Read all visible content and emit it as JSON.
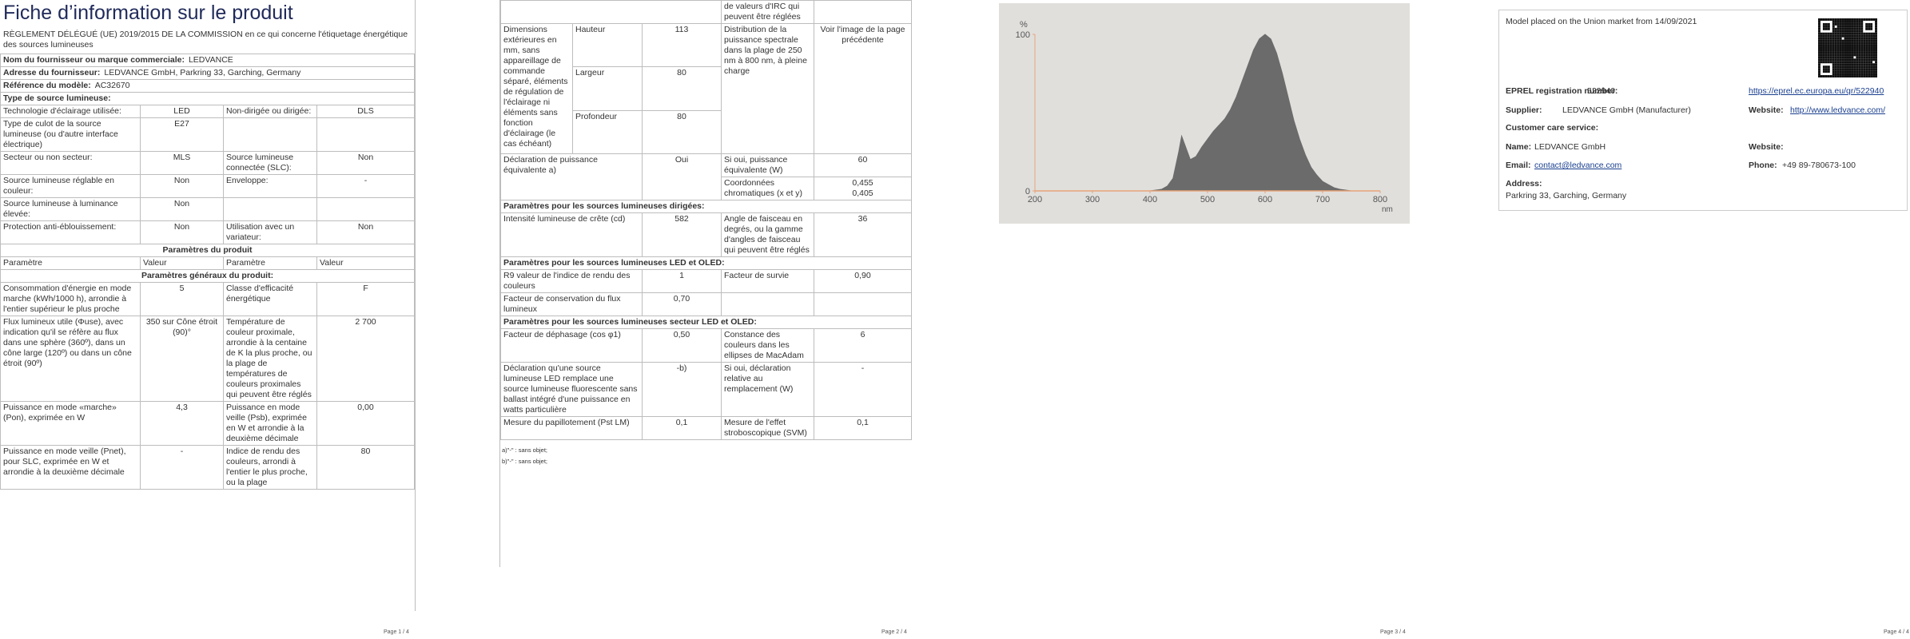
{
  "page1": {
    "title": "Fiche d’information sur le produit",
    "regulation": "RÈGLEMENT DÉLÉGUÉ (UE) 2019/2015 DE LA COMMISSION en ce qui concerne l'étiquetage énergétique des sources lumineuses",
    "supplier_info": [
      [
        "Nom du fournisseur ou marque commerciale:",
        "LEDVANCE"
      ],
      [
        "Adresse du fournisseur:",
        "LEDVANCE GmbH, Parkring 33, Garching, Germany"
      ],
      [
        "Référence du modèle:",
        "AC32670"
      ]
    ],
    "source_heading": "Type de source lumineuse:",
    "source_rows": [
      [
        "Technologie d'éclairage utilisée:",
        "LED",
        "Non-dirigée ou dirigée:",
        "DLS"
      ],
      [
        "Type de culot de la source lumineuse (ou d'autre interface électrique)",
        "E27",
        null,
        null
      ],
      [
        "Secteur ou non secteur:",
        "MLS",
        "Source lumineuse connectée (SLC):",
        "Non"
      ],
      [
        "Source lumineuse réglable en couleur:",
        "Non",
        "Enveloppe:",
        "-"
      ],
      [
        "Source lumineuse à luminance élevée:",
        "Non",
        null,
        null
      ],
      [
        "Protection anti-éblouissement:",
        "Non",
        "Utilisation avec un variateur:",
        "Non"
      ]
    ],
    "params_heading": "Paramètres du produit",
    "header_row": [
      "Paramètre",
      "Valeur",
      "Paramètre",
      "Valeur"
    ],
    "general_heading": "Paramètres généraux du produit:",
    "general_rows": [
      [
        "Consommation d'énergie en mode marche (kWh/1000 h), arrondie à l'entier supérieur le plus proche",
        "5",
        "Classe d'efficacité énergétique",
        "F"
      ],
      [
        "Flux lumineux utile (Φuse), avec indication qu'il se réfère au flux dans une sphère (360º), dans un cône large (120º) ou dans un cône étroit (90º)",
        "350 sur Cône étroit (90)°",
        "Température de couleur proximale, arrondie à la centaine de K la plus proche, ou la plage de températures de couleurs proximales qui peuvent être réglés",
        "2 700"
      ],
      [
        "Puissance en mode «marche» (Pon), exprimée en W",
        "4,3",
        "Puissance en mode veille (Psb), exprimée en W et arrondie à la deuxième décimale",
        "0,00"
      ],
      [
        "Puissance en mode veille (Pnet), pour SLC, exprimée en W et arrondie à la deuxième décimale",
        "-",
        "Indice de rendu des couleurs, arrondi à l'entier le plus proche, ou la plage",
        "80"
      ]
    ],
    "footer": "Page 1 / 4"
  },
  "page2": {
    "continued": "de valeurs d'IRC qui peuvent être réglées",
    "dimensions": {
      "label": "Dimensions extérieures en mm, sans appareillage de commande séparé, éléments de régulation de l'éclairage ni éléments sans fonction d'éclairage (le cas échéant)",
      "rows": [
        [
          "Hauteur",
          "113"
        ],
        [
          "Largeur",
          "80"
        ],
        [
          "Profondeur",
          "80"
        ]
      ],
      "param": "Distribution de la puissance spectrale dans la plage de 250 nm à 800 nm, à pleine charge",
      "value": "Voir l'image de la page précédente"
    },
    "equivalent": {
      "label": "Déclaration de puissance équivalente a)",
      "value": "Oui",
      "param": "Si oui, puissance équivalente (W)",
      "param_value": "60",
      "chroma_label": "Coordonnées chromatiques (x et y)",
      "chroma_values": [
        "0,455",
        "0,405"
      ]
    },
    "sections": [
      {
        "heading": "Paramètres pour les sources lumineuses dirigées:",
        "rows": [
          [
            "Intensité lumineuse de crête (cd)",
            "582",
            "Angle de faisceau en degrés, ou la gamme d'angles de faisceau qui peuvent être réglés",
            "36"
          ]
        ]
      },
      {
        "heading": "Paramètres pour les sources lumineuses LED et OLED:",
        "rows": [
          [
            "R9 valeur de l'indice de rendu des couleurs",
            "1",
            "Facteur de survie",
            "0,90"
          ],
          [
            "Facteur de conservation du flux lumineux",
            "0,70",
            null,
            null
          ]
        ]
      },
      {
        "heading": "Paramètres pour les sources lumineuses secteur LED et OLED:",
        "rows": [
          [
            "Facteur de déphasage (cos φ1)",
            "0,50",
            "Constance des couleurs dans les ellipses de MacAdam",
            "6"
          ],
          [
            "Déclaration qu'une source lumineuse LED remplace une source lumineuse fluorescente sans ballast intégré d'une puissance en watts particulière",
            "-b)",
            "Si oui, déclaration relative au remplacement (W)",
            "-"
          ],
          [
            "Mesure du papillotement (Pst LM)",
            "0,1",
            "Mesure de l'effet stroboscopique (SVM)",
            "0,1"
          ]
        ]
      }
    ],
    "notes": [
      "a)\"-\" : sans objet;",
      "b)\"-\" : sans objet;"
    ],
    "footer": "Page 2 / 4"
  },
  "chart_data": {
    "type": "area",
    "y_label": "%",
    "x_label": "nm",
    "x": [
      400,
      410,
      420,
      430,
      440,
      450,
      455,
      460,
      470,
      480,
      490,
      500,
      510,
      520,
      530,
      540,
      550,
      560,
      570,
      580,
      590,
      600,
      610,
      620,
      630,
      640,
      650,
      660,
      670,
      680,
      690,
      700,
      710,
      720,
      730,
      740,
      750
    ],
    "values": [
      0,
      0.5,
      1,
      3,
      8,
      25,
      35,
      30,
      20,
      22,
      28,
      33,
      38,
      42,
      46,
      52,
      60,
      70,
      80,
      90,
      97,
      100,
      97,
      88,
      75,
      60,
      45,
      33,
      23,
      15,
      10,
      6,
      4,
      2,
      1,
      0.5,
      0
    ],
    "color": "#6b6b6b",
    "axis_color": "#e8a37a",
    "background": "#e0dfdc",
    "xlim": [
      200,
      800
    ],
    "ylim": [
      0,
      100
    ],
    "xticks": [
      200,
      300,
      400,
      500,
      600,
      700,
      800
    ],
    "yticks": [
      0,
      100
    ]
  },
  "page3": {
    "footer": "Page 3 / 4"
  },
  "page4": {
    "placed": "Model placed on the Union market from 14/09/2021",
    "eprel_label": "EPREL registration number:",
    "eprel_value": "522940",
    "eprel_link": "https://eprel.ec.europa.eu/qr/522940",
    "supplier_label": "Supplier:",
    "supplier_value": "LEDVANCE GmbH (Manufacturer)",
    "website_label": "Website:",
    "website_link": "http://www.ledvance.com/",
    "care_label": "Customer care service:",
    "name_label": "Name:",
    "name_value": "LEDVANCE GmbH",
    "care_website_label": "Website:",
    "email_label": "Email:",
    "email_value": "contact@ledvance.com",
    "phone_label": "Phone:",
    "phone_value": "+49 89-780673-100",
    "address_label": "Address:",
    "address_value": "Parkring 33, Garching, Germany",
    "footer": "Page 4 / 4"
  }
}
